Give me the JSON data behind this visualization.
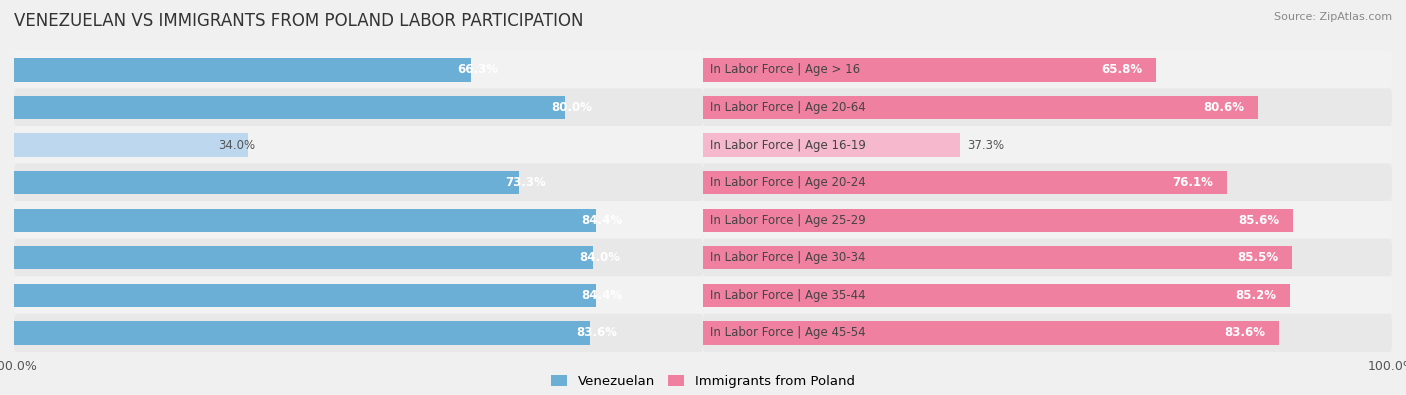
{
  "title": "VENEZUELAN VS IMMIGRANTS FROM POLAND LABOR PARTICIPATION",
  "source": "Source: ZipAtlas.com",
  "categories": [
    "In Labor Force | Age > 16",
    "In Labor Force | Age 20-64",
    "In Labor Force | Age 16-19",
    "In Labor Force | Age 20-24",
    "In Labor Force | Age 25-29",
    "In Labor Force | Age 30-34",
    "In Labor Force | Age 35-44",
    "In Labor Force | Age 45-54"
  ],
  "venezuelan_values": [
    66.3,
    80.0,
    34.0,
    73.3,
    84.4,
    84.0,
    84.4,
    83.6
  ],
  "poland_values": [
    65.8,
    80.6,
    37.3,
    76.1,
    85.6,
    85.5,
    85.2,
    83.6
  ],
  "venezuelan_color": "#6BAED6",
  "venezuelan_color_light": "#BDD7EE",
  "poland_color": "#F080A0",
  "poland_color_light": "#F5B8CC",
  "bar_height": 0.62,
  "row_colors": [
    "#f2f2f2",
    "#e8e8e8"
  ],
  "background_color": "#f0f0f0",
  "label_fontsize": 8.5,
  "value_fontsize": 8.5,
  "title_fontsize": 12,
  "legend_fontsize": 9.5,
  "axis_label_fontsize": 9
}
